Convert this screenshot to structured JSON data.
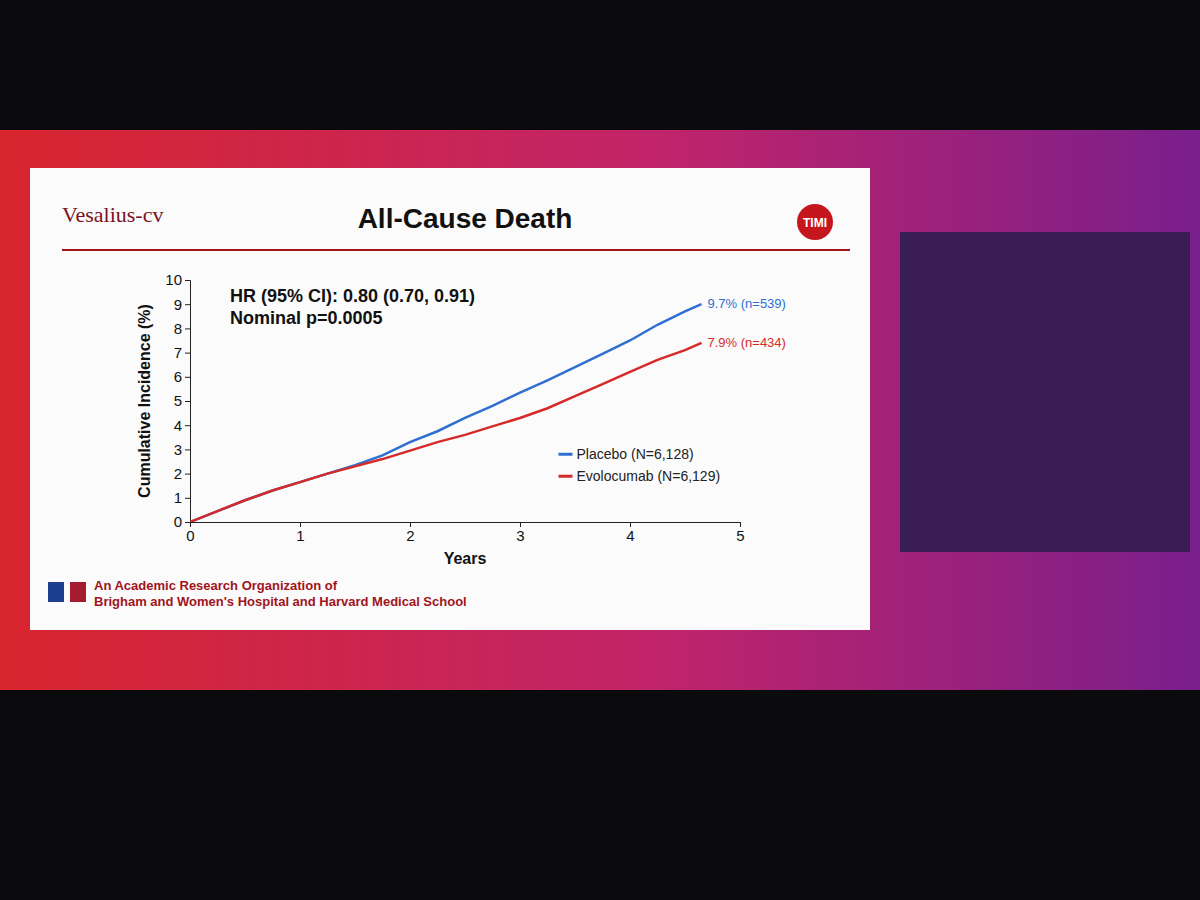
{
  "chart_data": {
    "type": "line",
    "brand": "Vesalius-cv",
    "logo": "TIMI",
    "title": "All-Cause Death",
    "x_label": "Years",
    "y_label": "Cumulative Incidence (%)",
    "annotations": [
      "HR (95% CI): 0.80 (0.70, 0.91)",
      "Nominal p=0.0005"
    ],
    "footer": [
      "An Academic Research Organization of",
      "Brigham and Women's Hospital and Harvard Medical School"
    ],
    "x": [
      0,
      0.25,
      0.5,
      0.75,
      1,
      1.25,
      1.5,
      1.75,
      2,
      2.25,
      2.5,
      2.75,
      3,
      3.25,
      3.5,
      3.75,
      4,
      4.25,
      4.5,
      4.65
    ],
    "series": [
      {
        "name": "Placebo (N=6,128)",
        "color": "#2f6fd0",
        "label": "9.7% (n=539)",
        "values": [
          0,
          0.45,
          0.9,
          1.3,
          1.65,
          2.0,
          2.35,
          2.75,
          3.3,
          3.75,
          4.3,
          4.8,
          5.35,
          5.85,
          6.4,
          6.95,
          7.5,
          8.15,
          8.7,
          9.0
        ]
      },
      {
        "name": "Evolocumab (N=6,129)",
        "color": "#d42a2a",
        "label": "7.9% (n=434)",
        "values": [
          0,
          0.45,
          0.9,
          1.3,
          1.65,
          2.0,
          2.3,
          2.6,
          2.95,
          3.3,
          3.6,
          3.95,
          4.3,
          4.7,
          5.2,
          5.7,
          6.2,
          6.7,
          7.1,
          7.4
        ]
      }
    ],
    "xlim": [
      0,
      5
    ],
    "xticks": [
      0,
      1,
      2,
      3,
      4,
      5
    ],
    "ylim": [
      0,
      10
    ],
    "yticks": [
      0,
      1,
      2,
      3,
      4,
      5,
      6,
      7,
      8,
      9,
      10
    ],
    "grid": false,
    "legend": "lower right"
  }
}
